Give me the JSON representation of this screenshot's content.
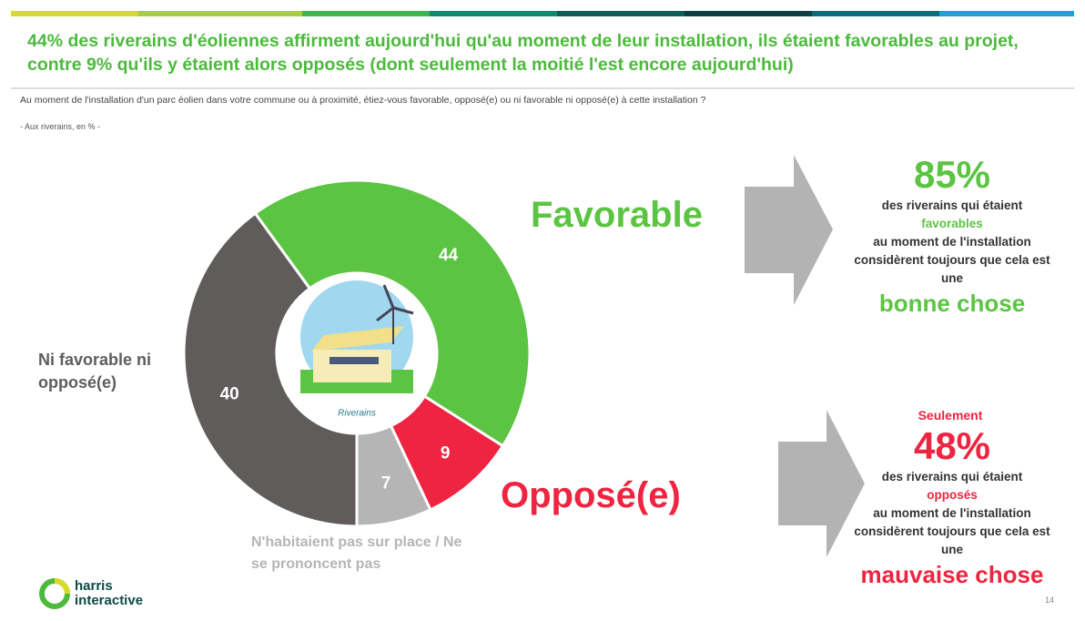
{
  "title": "44% des riverains d'éoliennes affirment aujourd'hui qu'au moment de leur installation, ils étaient favorables au projet, contre 9% qu'ils y étaient alors opposés (dont seulement la moitié l'est encore aujourd'hui)",
  "question": "Au moment de l'installation d'un parc éolien dans votre commune ou à proximité, étiez-vous favorable, opposé(e) ou ni favorable ni opposé(e) à cette installation ?",
  "note": "- Aux riverains, en % -",
  "chart_data": {
    "type": "pie",
    "donut": true,
    "center_label": "Riverains",
    "categories": [
      "Favorable",
      "Opposé(e)",
      "N'habitaient pas sur place / Ne se prononcent pas",
      "Ni favorable ni opposé(e)"
    ],
    "values": [
      44,
      9,
      7,
      40
    ],
    "colors": [
      "#5cc443",
      "#ee2440",
      "#b5b5b5",
      "#5f5c5b"
    ]
  },
  "callouts": [
    {
      "headline": "85%",
      "text_before": "des riverains qui étaient",
      "highlight": "favorables",
      "text_after": "au moment de l'installation considèrent toujours que cela est une",
      "conclusion": "bonne chose"
    },
    {
      "prefix": "Seulement",
      "headline": "48%",
      "text_before": "des riverains qui étaient",
      "highlight": "opposés",
      "text_after": "au moment de l'installation considèrent toujours que cela est une",
      "conclusion": "mauvaise chose"
    }
  ],
  "logo": "harris interactive",
  "page_number": "14"
}
